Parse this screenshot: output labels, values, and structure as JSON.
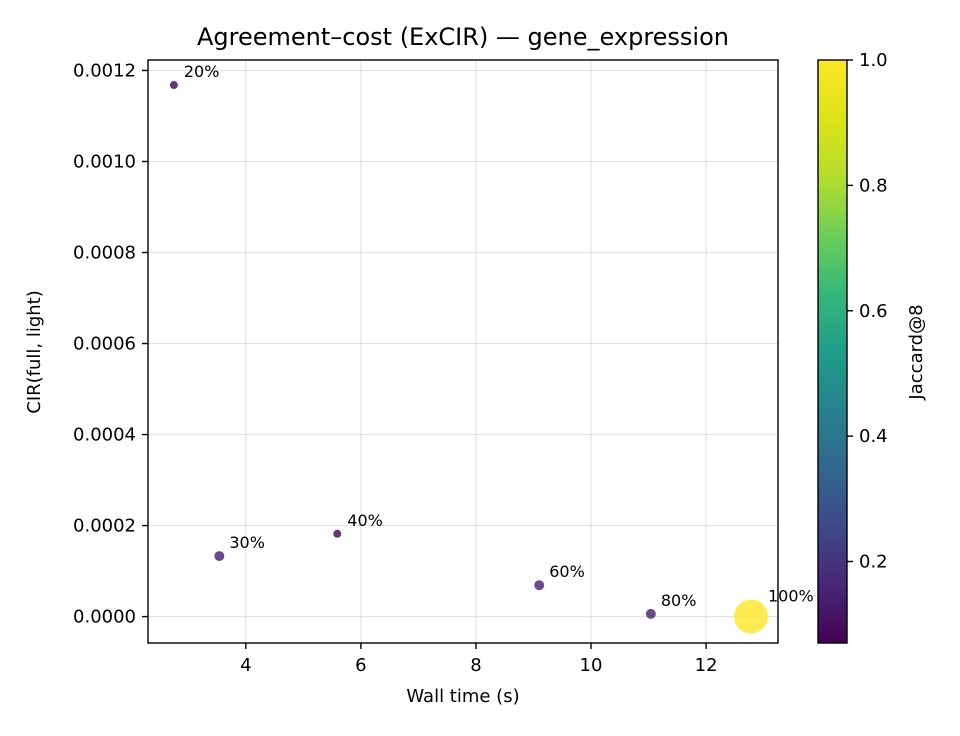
{
  "chart_data": {
    "type": "scatter",
    "title": "Agreement–cost (ExCIR) — gene_expression",
    "xlabel": "Wall time (s)",
    "ylabel": "CIR(full, light)",
    "xlim": [
      2.3,
      13.25
    ],
    "ylim": [
      -5.8e-05,
      0.001223
    ],
    "xticks": [
      4,
      6,
      8,
      10,
      12
    ],
    "xtick_labels": [
      "4",
      "6",
      "8",
      "10",
      "12"
    ],
    "yticks": [
      0.0,
      0.0002,
      0.0004,
      0.0006,
      0.0008,
      0.001,
      0.0012
    ],
    "ytick_labels": [
      "0.0000",
      "0.0002",
      "0.0004",
      "0.0006",
      "0.0008",
      "0.0010",
      "0.0012"
    ],
    "grid": true,
    "colorbar": {
      "label": "Jaccard@8",
      "colormap": "viridis",
      "range": [
        0.07,
        1.0
      ],
      "ticks": [
        0.2,
        0.4,
        0.6,
        0.8,
        1.0
      ],
      "tick_labels": [
        "0.2",
        "0.4",
        "0.6",
        "0.8",
        "1.0"
      ]
    },
    "points": [
      {
        "label": "20%",
        "x": 2.75,
        "y": 0.001168,
        "jaccard": 0.07
      },
      {
        "label": "30%",
        "x": 3.54,
        "y": 0.000133,
        "jaccard": 0.14
      },
      {
        "label": "40%",
        "x": 5.59,
        "y": 0.000182,
        "jaccard": 0.07
      },
      {
        "label": "60%",
        "x": 9.1,
        "y": 6.9e-05,
        "jaccard": 0.14
      },
      {
        "label": "80%",
        "x": 11.04,
        "y": 6e-06,
        "jaccard": 0.14
      },
      {
        "label": "100%",
        "x": 12.78,
        "y": 0.0,
        "jaccard": 1.0
      }
    ]
  }
}
